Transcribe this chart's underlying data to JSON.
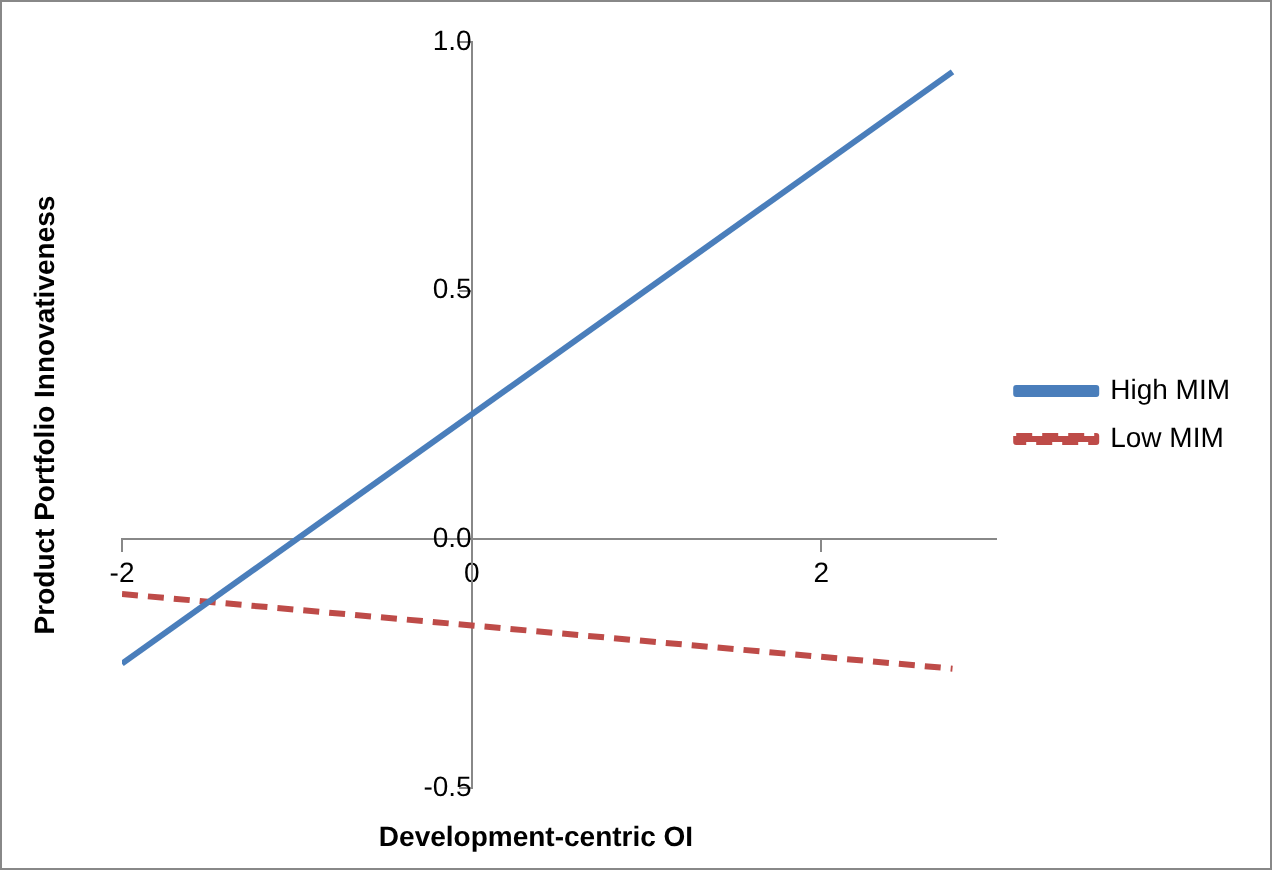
{
  "chart_data": {
    "type": "line",
    "xlabel": "Development-centric OI",
    "ylabel": "Product Portfolio Innovativeness",
    "x": [
      -2,
      2.75
    ],
    "series": [
      {
        "name": "High MIM",
        "color": "#4a7ebb",
        "values": [
          -0.25,
          0.94
        ],
        "line_style": "solid"
      },
      {
        "name": "Low MIM",
        "color": "#be4b48",
        "values": [
          -0.11,
          -0.26
        ],
        "line_style": "dashed"
      }
    ],
    "xlim": [
      -2,
      3
    ],
    "xticks": [
      -2,
      0,
      2
    ],
    "ylim": [
      -0.5,
      1.0
    ],
    "yticks": [
      {
        "value": -0.5,
        "label": "-0.5"
      },
      {
        "value": 0,
        "label": "0.0"
      },
      {
        "value": 0.5,
        "label": "0.5"
      },
      {
        "value": 1,
        "label": "1.0"
      }
    ],
    "grid": false,
    "legend": "right",
    "marker": "none"
  }
}
